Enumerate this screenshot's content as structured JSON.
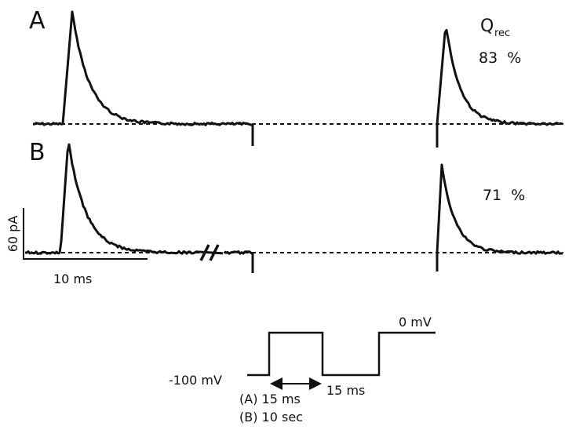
{
  "panels": [
    {
      "label": "A",
      "recovery": "83  %"
    },
    {
      "label": "B",
      "recovery": "71  %"
    }
  ],
  "q_label": {
    "main": "Q",
    "sub": "rec"
  },
  "scale_bar": {
    "current": "60 pA",
    "time": "10 ms"
  },
  "protocol": {
    "top_level": "0 mV",
    "bottom_level": "-100 mV",
    "gap": "15 ms",
    "interval_a": "(A) 15 ms",
    "interval_b": "(B) 10 sec"
  }
}
